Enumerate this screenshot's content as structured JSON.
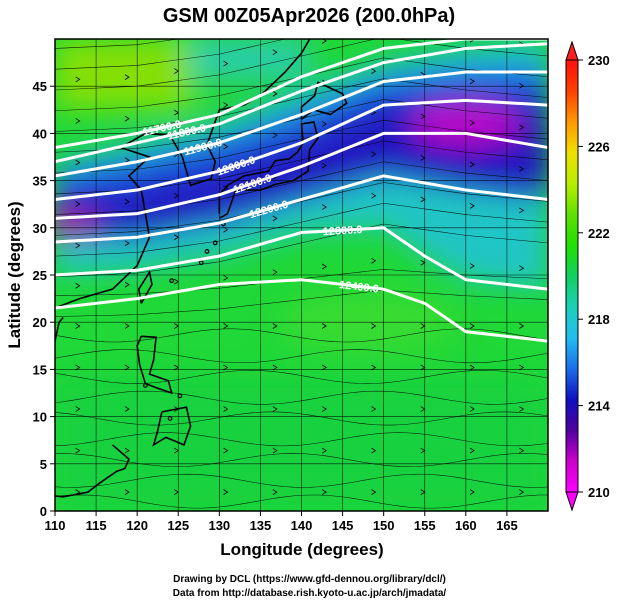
{
  "title": "GSM 00Z05Apr2026 (200.0hPa)",
  "xlabel": "Longitude (degrees)",
  "ylabel": "Latitude  (degrees)",
  "credits": [
    "Drawing by DCL (https://www.gfd-dennou.org/library/dcl/)",
    "Data from http://database.rish.kyoto-u.ac.jp/arch/jmadata/"
  ],
  "map": {
    "lon_range": [
      110,
      170
    ],
    "lat_range": [
      0,
      50
    ],
    "lon_ticks": [
      110,
      115,
      120,
      125,
      130,
      135,
      140,
      145,
      150,
      155,
      160,
      165
    ],
    "lat_ticks": [
      0,
      5,
      10,
      15,
      20,
      25,
      30,
      35,
      40,
      45
    ]
  },
  "colorbar": {
    "min": 210,
    "max": 230,
    "ticks": [
      "210",
      "214",
      "218",
      "222",
      "226",
      "230"
    ],
    "colors": [
      "#ff00ff",
      "#cc00cc",
      "#5000a0",
      "#1010c0",
      "#1a6ee8",
      "#22bdf0",
      "#1cd0b8",
      "#10d060",
      "#20e000",
      "#60e000",
      "#b8ee00",
      "#f0e000",
      "#ff9800",
      "#ff4000",
      "#ff1010"
    ]
  },
  "contours": [
    {
      "label": "11700.0",
      "lat_at_lon": [
        [
          110,
          38.5
        ],
        [
          120,
          40
        ],
        [
          130,
          42
        ],
        [
          140,
          46
        ],
        [
          150,
          49
        ],
        [
          160,
          50
        ],
        [
          170,
          50
        ]
      ]
    },
    {
      "label": "11800.0",
      "lat_at_lon": [
        [
          110,
          37
        ],
        [
          120,
          39
        ],
        [
          130,
          41
        ],
        [
          140,
          44.5
        ],
        [
          150,
          47.5
        ],
        [
          160,
          49
        ],
        [
          170,
          49.5
        ]
      ]
    },
    {
      "label": "11900.0",
      "lat_at_lon": [
        [
          110,
          35.5
        ],
        [
          120,
          37
        ],
        [
          130,
          39
        ],
        [
          140,
          42
        ],
        [
          150,
          45.5
        ],
        [
          160,
          46.5
        ],
        [
          170,
          46.5
        ]
      ]
    },
    {
      "label": "12000.0",
      "lat_at_lon": [
        [
          110,
          33
        ],
        [
          120,
          34
        ],
        [
          130,
          36
        ],
        [
          140,
          39
        ],
        [
          150,
          43
        ],
        [
          160,
          43.5
        ],
        [
          170,
          43
        ]
      ]
    },
    {
      "label": "12100.0",
      "lat_at_lon": [
        [
          110,
          31
        ],
        [
          120,
          31.5
        ],
        [
          130,
          33.5
        ],
        [
          140,
          36.5
        ],
        [
          150,
          40
        ],
        [
          160,
          40
        ],
        [
          170,
          38.5
        ]
      ]
    },
    {
      "label": "12200.0",
      "lat_at_lon": [
        [
          110,
          28.5
        ],
        [
          120,
          29
        ],
        [
          130,
          30.5
        ],
        [
          140,
          33
        ],
        [
          150,
          35.5
        ],
        [
          160,
          34
        ],
        [
          170,
          33
        ]
      ]
    },
    {
      "label": "12300.0",
      "lat_at_lon": [
        [
          110,
          25
        ],
        [
          120,
          25.5
        ],
        [
          130,
          27
        ],
        [
          140,
          29.5
        ],
        [
          150,
          30
        ],
        [
          155,
          27
        ],
        [
          160,
          24.5
        ],
        [
          170,
          23.5
        ]
      ]
    },
    {
      "label": "12400.0",
      "lat_at_lon": [
        [
          110,
          21.5
        ],
        [
          120,
          22.5
        ],
        [
          130,
          24
        ],
        [
          140,
          24.5
        ],
        [
          150,
          23.5
        ],
        [
          155,
          22
        ],
        [
          160,
          19
        ],
        [
          170,
          18
        ]
      ]
    }
  ],
  "contour_labels_shown": [
    "11700.0",
    "11800.0",
    "11900.0",
    "12000.0",
    "12100.0",
    "12200.0",
    "12300.0",
    "12400.0"
  ],
  "temperature_field_note": "Shaded temperature at 200hPa; cold core (~210-214) along jet band 30-45N, warm (~222) in tropics",
  "colors": {
    "contour": "#ffffff",
    "coast": "#000000",
    "grid": "#000000",
    "streamline": "#000000"
  }
}
